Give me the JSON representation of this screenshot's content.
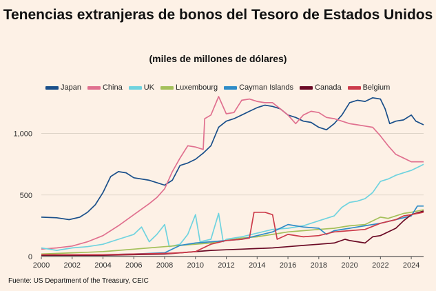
{
  "chart_data": {
    "type": "line",
    "title": "Tenencias extranjeras de bonos del Tesoro de Estados Unidos",
    "subtitle": "(miles de millones de dólares)",
    "source": "Fuente: US Department of the Treasury, CEIC",
    "xlim": [
      2000,
      2024.8
    ],
    "ylim": [
      0,
      1300
    ],
    "x_ticks": [
      2000,
      2002,
      2004,
      2006,
      2008,
      2010,
      2012,
      2014,
      2016,
      2018,
      2020,
      2022,
      2024
    ],
    "x_tick_labels": [
      "2000",
      "2002",
      "2004",
      "2006",
      "2008",
      "2010",
      "2012",
      "2014",
      "2016",
      "2018",
      "2020",
      "2022",
      "2024"
    ],
    "y_ticks": [
      0,
      500,
      1000
    ],
    "y_tick_labels": [
      "0",
      "500",
      "1,000"
    ],
    "grid": "horizontal",
    "legend_position": "top",
    "series": [
      {
        "name": "Japan",
        "color": "#1a4f8a",
        "points": [
          [
            2000,
            320
          ],
          [
            2001,
            315
          ],
          [
            2001.8,
            300
          ],
          [
            2002.5,
            320
          ],
          [
            2003,
            360
          ],
          [
            2003.5,
            420
          ],
          [
            2004,
            520
          ],
          [
            2004.5,
            650
          ],
          [
            2005,
            690
          ],
          [
            2005.5,
            680
          ],
          [
            2006,
            640
          ],
          [
            2007,
            620
          ],
          [
            2007.5,
            600
          ],
          [
            2008,
            580
          ],
          [
            2008.5,
            620
          ],
          [
            2009,
            740
          ],
          [
            2009.5,
            760
          ],
          [
            2010,
            790
          ],
          [
            2010.5,
            840
          ],
          [
            2011,
            900
          ],
          [
            2011.5,
            1050
          ],
          [
            2012,
            1100
          ],
          [
            2012.5,
            1120
          ],
          [
            2013,
            1150
          ],
          [
            2013.5,
            1180
          ],
          [
            2014,
            1210
          ],
          [
            2014.5,
            1230
          ],
          [
            2015,
            1220
          ],
          [
            2015.5,
            1200
          ],
          [
            2016,
            1150
          ],
          [
            2016.5,
            1130
          ],
          [
            2017,
            1100
          ],
          [
            2017.5,
            1090
          ],
          [
            2018,
            1050
          ],
          [
            2018.5,
            1030
          ],
          [
            2019,
            1080
          ],
          [
            2019.5,
            1150
          ],
          [
            2020,
            1250
          ],
          [
            2020.5,
            1270
          ],
          [
            2021,
            1260
          ],
          [
            2021.5,
            1290
          ],
          [
            2022,
            1280
          ],
          [
            2022.3,
            1200
          ],
          [
            2022.6,
            1080
          ],
          [
            2023,
            1100
          ],
          [
            2023.5,
            1110
          ],
          [
            2024,
            1150
          ],
          [
            2024.3,
            1100
          ],
          [
            2024.8,
            1070
          ]
        ]
      },
      {
        "name": "China",
        "color": "#e0708f",
        "points": [
          [
            2000,
            60
          ],
          [
            2001,
            70
          ],
          [
            2002,
            85
          ],
          [
            2003,
            120
          ],
          [
            2004,
            170
          ],
          [
            2005,
            250
          ],
          [
            2006,
            340
          ],
          [
            2007,
            430
          ],
          [
            2007.5,
            480
          ],
          [
            2008,
            550
          ],
          [
            2008.5,
            690
          ],
          [
            2009,
            800
          ],
          [
            2009.5,
            900
          ],
          [
            2010,
            890
          ],
          [
            2010.5,
            870
          ],
          [
            2010.6,
            1120
          ],
          [
            2011,
            1150
          ],
          [
            2011.5,
            1300
          ],
          [
            2012,
            1160
          ],
          [
            2012.5,
            1170
          ],
          [
            2013,
            1270
          ],
          [
            2013.5,
            1280
          ],
          [
            2014,
            1260
          ],
          [
            2014.5,
            1250
          ],
          [
            2015,
            1250
          ],
          [
            2015.5,
            1200
          ],
          [
            2016,
            1150
          ],
          [
            2016.5,
            1080
          ],
          [
            2017,
            1150
          ],
          [
            2017.5,
            1180
          ],
          [
            2018,
            1170
          ],
          [
            2018.5,
            1130
          ],
          [
            2019,
            1120
          ],
          [
            2019.5,
            1100
          ],
          [
            2020,
            1080
          ],
          [
            2020.5,
            1070
          ],
          [
            2021,
            1060
          ],
          [
            2021.5,
            1050
          ],
          [
            2022,
            980
          ],
          [
            2022.5,
            900
          ],
          [
            2023,
            830
          ],
          [
            2023.5,
            800
          ],
          [
            2024,
            770
          ],
          [
            2024.8,
            770
          ]
        ]
      },
      {
        "name": "UK",
        "color": "#6fd3df",
        "points": [
          [
            2000,
            70
          ],
          [
            2001,
            50
          ],
          [
            2002,
            70
          ],
          [
            2003,
            80
          ],
          [
            2004,
            100
          ],
          [
            2005,
            140
          ],
          [
            2006,
            180
          ],
          [
            2006.5,
            240
          ],
          [
            2007,
            120
          ],
          [
            2007.5,
            180
          ],
          [
            2008,
            260
          ],
          [
            2008.3,
            80
          ],
          [
            2009,
            100
          ],
          [
            2009.5,
            180
          ],
          [
            2010,
            340
          ],
          [
            2010.3,
            120
          ],
          [
            2011,
            140
          ],
          [
            2011.5,
            350
          ],
          [
            2011.8,
            120
          ],
          [
            2012,
            140
          ],
          [
            2013,
            160
          ],
          [
            2014,
            190
          ],
          [
            2015,
            220
          ],
          [
            2016,
            230
          ],
          [
            2017,
            250
          ],
          [
            2018,
            290
          ],
          [
            2019,
            330
          ],
          [
            2019.5,
            400
          ],
          [
            2020,
            440
          ],
          [
            2020.5,
            450
          ],
          [
            2021,
            470
          ],
          [
            2021.5,
            520
          ],
          [
            2022,
            610
          ],
          [
            2022.5,
            630
          ],
          [
            2023,
            660
          ],
          [
            2023.5,
            680
          ],
          [
            2024,
            700
          ],
          [
            2024.5,
            730
          ],
          [
            2024.8,
            750
          ]
        ]
      },
      {
        "name": "Luxembourg",
        "color": "#a4c05a",
        "points": [
          [
            2000,
            20
          ],
          [
            2001,
            25
          ],
          [
            2002,
            30
          ],
          [
            2003,
            35
          ],
          [
            2004,
            40
          ],
          [
            2005,
            50
          ],
          [
            2006,
            60
          ],
          [
            2007,
            70
          ],
          [
            2008,
            80
          ],
          [
            2009,
            90
          ],
          [
            2010,
            100
          ],
          [
            2011,
            110
          ],
          [
            2012,
            130
          ],
          [
            2013,
            150
          ],
          [
            2014,
            160
          ],
          [
            2015,
            180
          ],
          [
            2016,
            200
          ],
          [
            2017,
            210
          ],
          [
            2018,
            220
          ],
          [
            2019,
            230
          ],
          [
            2020,
            250
          ],
          [
            2021,
            260
          ],
          [
            2022,
            320
          ],
          [
            2022.5,
            310
          ],
          [
            2023,
            330
          ],
          [
            2023.5,
            350
          ],
          [
            2024,
            360
          ],
          [
            2024.8,
            380
          ]
        ]
      },
      {
        "name": "Cayman Islands",
        "color": "#2f8cc8",
        "points": [
          [
            2000,
            15
          ],
          [
            2002,
            15
          ],
          [
            2004,
            15
          ],
          [
            2006,
            20
          ],
          [
            2008,
            30
          ],
          [
            2009,
            90
          ],
          [
            2010,
            110
          ],
          [
            2011,
            120
          ],
          [
            2012,
            130
          ],
          [
            2013,
            140
          ],
          [
            2014,
            170
          ],
          [
            2015,
            200
          ],
          [
            2016,
            260
          ],
          [
            2017,
            240
          ],
          [
            2018,
            230
          ],
          [
            2018.5,
            180
          ],
          [
            2019,
            210
          ],
          [
            2020,
            230
          ],
          [
            2021,
            250
          ],
          [
            2022,
            270
          ],
          [
            2023,
            300
          ],
          [
            2024,
            330
          ],
          [
            2024.4,
            410
          ],
          [
            2024.8,
            410
          ]
        ]
      },
      {
        "name": "Canada",
        "color": "#6b0a25",
        "points": [
          [
            2000,
            10
          ],
          [
            2002,
            10
          ],
          [
            2004,
            10
          ],
          [
            2006,
            15
          ],
          [
            2008,
            20
          ],
          [
            2009,
            30
          ],
          [
            2010,
            40
          ],
          [
            2011,
            50
          ],
          [
            2012,
            55
          ],
          [
            2013,
            60
          ],
          [
            2014,
            65
          ],
          [
            2015,
            70
          ],
          [
            2016,
            80
          ],
          [
            2017,
            90
          ],
          [
            2018,
            100
          ],
          [
            2019,
            110
          ],
          [
            2019.7,
            140
          ],
          [
            2020,
            130
          ],
          [
            2021,
            110
          ],
          [
            2021.5,
            160
          ],
          [
            2022,
            170
          ],
          [
            2023,
            230
          ],
          [
            2023.5,
            290
          ],
          [
            2024,
            340
          ],
          [
            2024.8,
            370
          ]
        ]
      },
      {
        "name": "Belgium",
        "color": "#cc3b4a",
        "points": [
          [
            2000,
            15
          ],
          [
            2002,
            15
          ],
          [
            2004,
            15
          ],
          [
            2006,
            20
          ],
          [
            2008,
            25
          ],
          [
            2009,
            30
          ],
          [
            2010,
            40
          ],
          [
            2011,
            100
          ],
          [
            2012,
            130
          ],
          [
            2013,
            140
          ],
          [
            2013.5,
            150
          ],
          [
            2013.8,
            360
          ],
          [
            2014.5,
            360
          ],
          [
            2015,
            340
          ],
          [
            2015.3,
            140
          ],
          [
            2016,
            180
          ],
          [
            2017,
            160
          ],
          [
            2018,
            170
          ],
          [
            2019,
            200
          ],
          [
            2020,
            210
          ],
          [
            2021,
            220
          ],
          [
            2022,
            270
          ],
          [
            2023,
            300
          ],
          [
            2023.5,
            330
          ],
          [
            2024,
            340
          ],
          [
            2024.8,
            360
          ]
        ]
      }
    ]
  }
}
